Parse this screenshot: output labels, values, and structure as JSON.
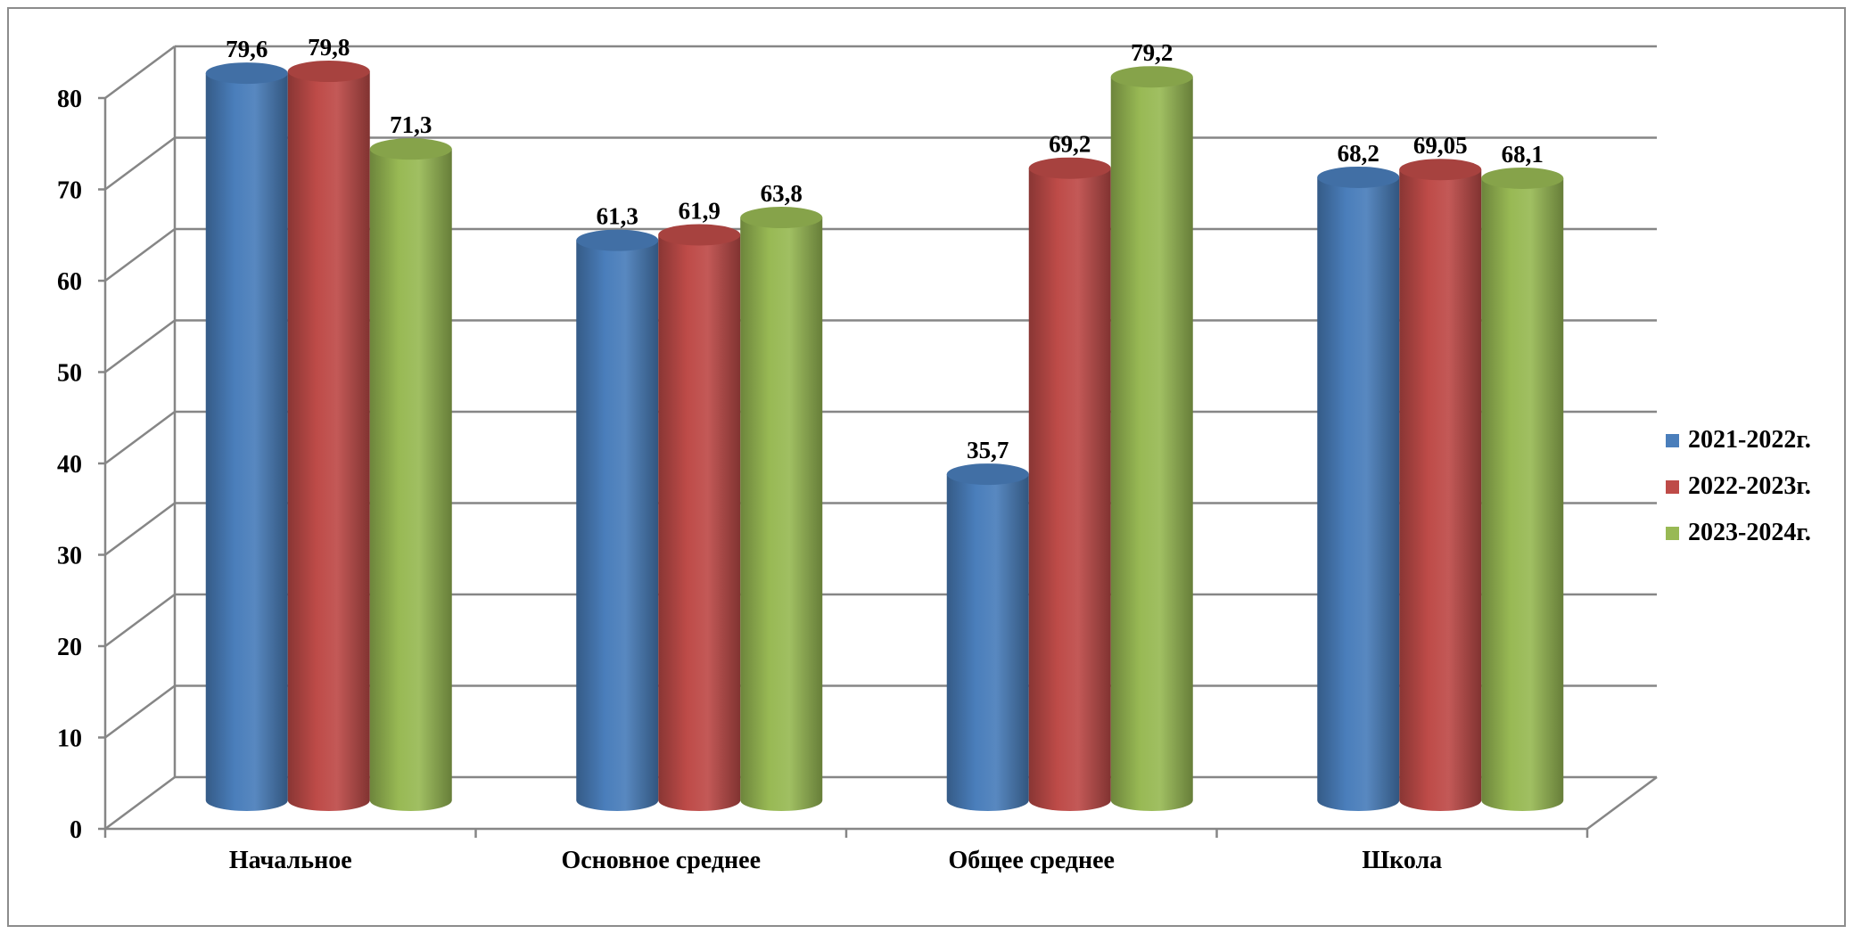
{
  "chart_data": {
    "type": "bar",
    "categories": [
      "Начальное",
      "Основное среднее",
      "Общее среднее",
      "Школа"
    ],
    "series": [
      {
        "name": "2021-2022г.",
        "color": "#4a7ebb",
        "values": [
          79.6,
          61.3,
          35.7,
          68.2
        ],
        "labels": [
          "79,6",
          "61,3",
          "35,7",
          "68,2"
        ]
      },
      {
        "name": "2022-2023г.",
        "color": "#be4b48",
        "values": [
          79.8,
          61.9,
          69.2,
          69.05
        ],
        "labels": [
          "79,8",
          "61,9",
          "69,2",
          "69,05"
        ]
      },
      {
        "name": "2023-2024г.",
        "color": "#98b954",
        "values": [
          71.3,
          63.8,
          79.2,
          68.1
        ],
        "labels": [
          "71,3",
          "63,8",
          "79,2",
          "68,1"
        ]
      }
    ],
    "ylim": [
      0,
      80
    ],
    "yticks": [
      "0",
      "10",
      "20",
      "30",
      "40",
      "50",
      "60",
      "70",
      "80"
    ],
    "grid": true,
    "legend_position": "right",
    "style": "3d-cylinder"
  }
}
